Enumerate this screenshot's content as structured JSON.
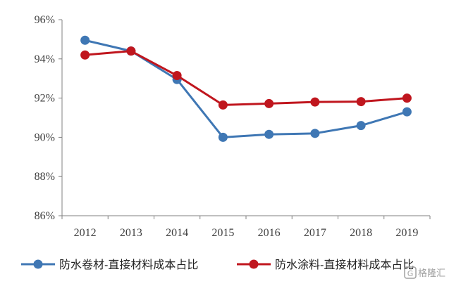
{
  "chart_data": {
    "type": "line",
    "title": "",
    "xlabel": "",
    "ylabel": "",
    "categories": [
      "2012",
      "2013",
      "2014",
      "2015",
      "2016",
      "2017",
      "2018",
      "2019"
    ],
    "ylim": [
      86,
      96
    ],
    "yticks": [
      "86%",
      "88%",
      "90%",
      "92%",
      "94%",
      "96%"
    ],
    "grid": false,
    "legend_position": "bottom",
    "series": [
      {
        "name": "防水卷材-直接材料成本占比",
        "color": "#3f77b4",
        "values": [
          94.95,
          94.4,
          92.95,
          90.0,
          90.15,
          90.2,
          90.6,
          91.3
        ]
      },
      {
        "name": "防水涂料-直接材料成本占比",
        "color": "#c0161e",
        "values": [
          94.2,
          94.4,
          93.15,
          91.65,
          91.72,
          91.8,
          91.82,
          92.0
        ]
      }
    ]
  },
  "watermark": {
    "text": "格隆汇"
  }
}
